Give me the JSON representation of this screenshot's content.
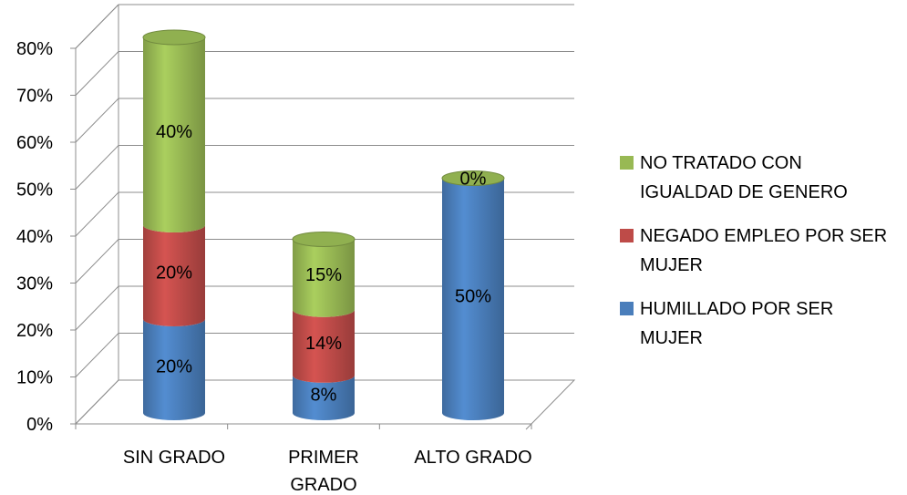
{
  "chart_data": {
    "type": "bar",
    "stacked": true,
    "style": "3d-cylinder",
    "categories": [
      [
        "SIN GRADO"
      ],
      [
        "PRIMER",
        "GRADO"
      ],
      [
        "ALTO GRADO"
      ]
    ],
    "series": [
      {
        "name": "HUMILLADO POR SER MUJER",
        "legend_lines": [
          "HUMILLADO POR SER",
          "MUJER"
        ],
        "color": "#4A7EBB",
        "values": [
          20,
          8,
          50
        ],
        "labels": [
          "20%",
          "8%",
          "50%"
        ]
      },
      {
        "name": "NEGADO EMPLEO POR SER MUJER",
        "legend_lines": [
          "NEGADO EMPLEO POR SER",
          "MUJER"
        ],
        "color": "#BE4B48",
        "values": [
          20,
          14,
          0
        ],
        "labels": [
          "20%",
          "14%",
          ""
        ]
      },
      {
        "name": "NO TRATADO CON IGUALDAD DE GENERO",
        "legend_lines": [
          "NO TRATADO CON",
          "IGUALDAD DE GENERO"
        ],
        "color": "#98B954",
        "values": [
          40,
          15,
          0
        ],
        "labels": [
          "40%",
          "15%",
          "0%"
        ]
      }
    ],
    "y_ticks": [
      "0%",
      "10%",
      "20%",
      "30%",
      "40%",
      "50%",
      "60%",
      "70%",
      "80%"
    ],
    "ylim": [
      0,
      80
    ],
    "grid": true,
    "legend_position": "right",
    "legend_order": [
      2,
      1,
      0
    ]
  }
}
